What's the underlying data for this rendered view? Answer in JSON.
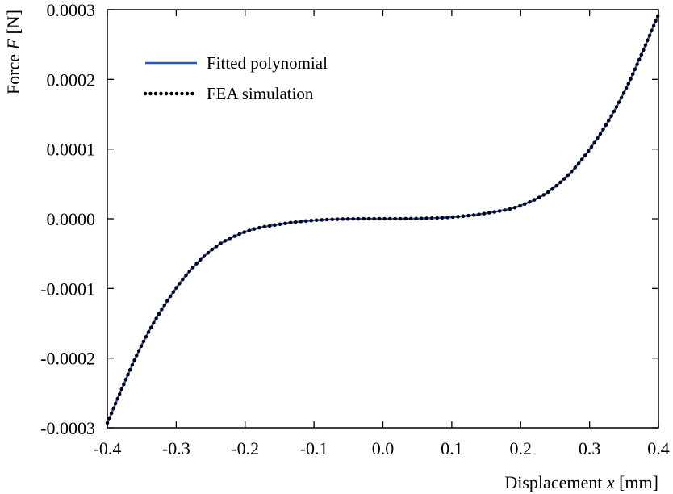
{
  "chart_data": {
    "type": "line",
    "title": "",
    "xlabel": {
      "prefix": "Displacement ",
      "var": "x",
      "suffix": " [mm]"
    },
    "ylabel": {
      "prefix": "Force ",
      "var": "F",
      "suffix": " [N]"
    },
    "xlim": [
      -0.4,
      0.4
    ],
    "ylim": [
      -0.0003,
      0.0003
    ],
    "xticks": [
      "-0.4",
      "-0.3",
      "-0.2",
      "-0.1",
      "0.0",
      "0.1",
      "0.2",
      "0.3",
      "0.4"
    ],
    "yticks": [
      "-0.0003",
      "-0.0002",
      "-0.0001",
      "0.0000",
      "0.0001",
      "0.0002",
      "0.0003"
    ],
    "grid": false,
    "legend_position": "top-left",
    "series": [
      {
        "name": "Fitted polynomial",
        "style": "solid",
        "color": "#2a52d8",
        "x": [
          -0.4,
          -0.35,
          -0.3,
          -0.25,
          -0.2,
          -0.15,
          -0.1,
          -0.05,
          0.0,
          0.05,
          0.1,
          0.15,
          0.2,
          0.25,
          0.3,
          0.35,
          0.4
        ],
        "y": [
          -0.000293,
          -0.000181,
          -9.93e-05,
          -4.58e-05,
          -1.88e-05,
          -7.9e-06,
          -2.3e-06,
          -3e-07,
          0.0,
          3e-07,
          2.3e-06,
          7.9e-06,
          1.88e-05,
          4.58e-05,
          9.93e-05,
          0.000181,
          0.000293
        ]
      },
      {
        "name": "FEA simulation",
        "style": "dotted",
        "color": "#000000",
        "x": [
          -0.4,
          -0.35,
          -0.3,
          -0.25,
          -0.2,
          -0.15,
          -0.1,
          -0.05,
          0.0,
          0.05,
          0.1,
          0.15,
          0.2,
          0.25,
          0.3,
          0.35,
          0.4
        ],
        "y": [
          -0.000293,
          -0.000181,
          -9.93e-05,
          -4.58e-05,
          -1.88e-05,
          -7.9e-06,
          -2.3e-06,
          -3e-07,
          0.0,
          3e-07,
          2.3e-06,
          7.9e-06,
          1.88e-05,
          4.58e-05,
          9.93e-05,
          0.000181,
          0.000293
        ]
      }
    ]
  }
}
